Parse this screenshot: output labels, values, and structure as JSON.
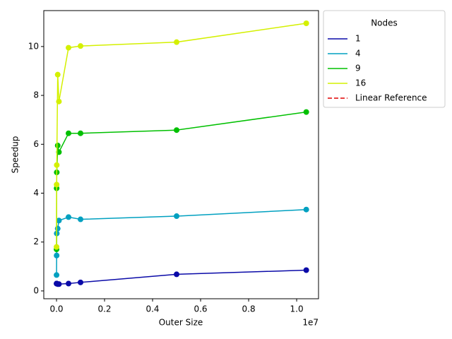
{
  "chart_data": {
    "type": "line",
    "xlabel": "Outer Size",
    "ylabel": "Speedup",
    "x_offset_label": "1e7",
    "x": [
      1000,
      5000,
      10000,
      50000,
      100000,
      500000,
      1000000,
      5000000,
      10400000
    ],
    "series": [
      {
        "name": "1",
        "color": "#0a0aa8",
        "linestyle": "solid",
        "marker": true,
        "values": [
          0.3,
          0.3,
          0.3,
          0.28,
          0.28,
          0.3,
          0.35,
          0.68,
          0.85
        ]
      },
      {
        "name": "4",
        "color": "#00a0c0",
        "linestyle": "solid",
        "marker": true,
        "values": [
          0.65,
          1.45,
          2.35,
          2.55,
          2.88,
          3.02,
          2.93,
          3.06,
          3.33
        ]
      },
      {
        "name": "9",
        "color": "#00c000",
        "linestyle": "solid",
        "marker": true,
        "values": [
          1.7,
          4.2,
          4.85,
          5.95,
          5.68,
          6.45,
          6.45,
          6.58,
          7.32
        ]
      },
      {
        "name": "16",
        "color": "#d4f000",
        "linestyle": "solid",
        "marker": true,
        "values": [
          1.8,
          4.35,
          5.15,
          8.85,
          7.75,
          9.95,
          10.02,
          10.18,
          10.95
        ]
      },
      {
        "name": "Linear Reference",
        "color": "#e00000",
        "linestyle": "dashed",
        "marker": false,
        "values": [
          null,
          null,
          null,
          null,
          null,
          null,
          null,
          null,
          null
        ]
      }
    ],
    "legend_title": "Nodes",
    "xlim": [
      -530000,
      10910000
    ],
    "xticks": [
      {
        "value": 0,
        "label": "0.0"
      },
      {
        "value": 2000000,
        "label": "0.2"
      },
      {
        "value": 4000000,
        "label": "0.4"
      },
      {
        "value": 6000000,
        "label": "0.6"
      },
      {
        "value": 8000000,
        "label": "0.8"
      },
      {
        "value": 10000000,
        "label": "1.0"
      }
    ],
    "ylim": [
      -0.32,
      11.47
    ],
    "yticks": [
      0,
      2,
      4,
      6,
      8,
      10
    ],
    "grid": false,
    "legend_position": "outside-right"
  }
}
